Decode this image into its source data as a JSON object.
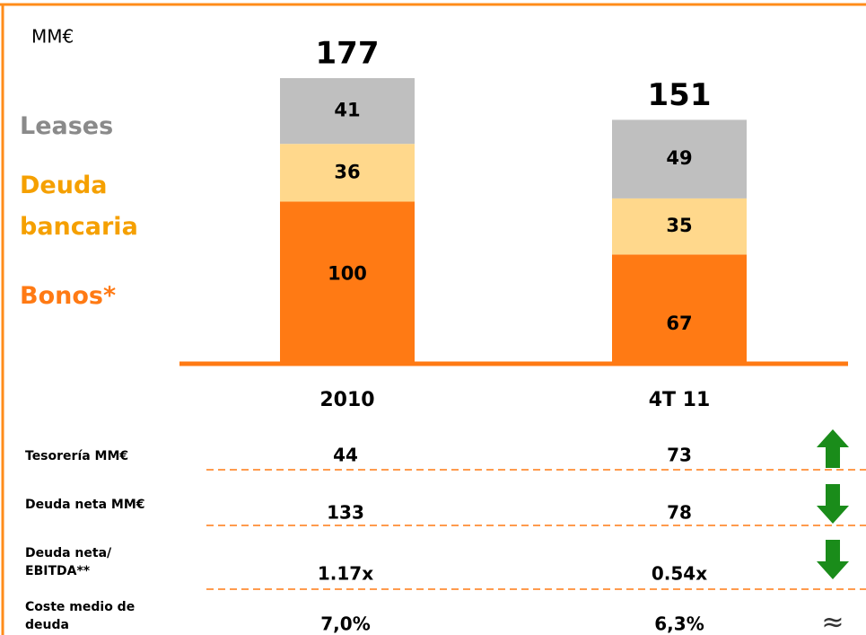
{
  "chart_data": {
    "type": "stacked_bar",
    "unit": "MM€",
    "categories": [
      "2010",
      "4T 11"
    ],
    "series": [
      {
        "name": "Bonos*",
        "color": "#ff7a14",
        "legend_color": "#ff7a14",
        "values": [
          100,
          67
        ]
      },
      {
        "name": "Deuda bancaria",
        "color": "#ffd88c",
        "legend_color": "#f5a000",
        "values": [
          36,
          35
        ]
      },
      {
        "name": "Leases",
        "color": "#bfbfbf",
        "legend_color": "#8a8a8a",
        "values": [
          41,
          49
        ]
      }
    ],
    "totals": [
      177,
      151
    ]
  },
  "table": {
    "rows": [
      {
        "label": "Tesorería  MM€",
        "values": [
          "44",
          "73"
        ]
      },
      {
        "label": "Deuda neta MM€",
        "values": [
          "133",
          "78"
        ]
      },
      {
        "label": "Deuda neta/ EBITDA**",
        "values": [
          "1.17x",
          "0.54x"
        ]
      },
      {
        "label": "Coste medio de deuda",
        "values": [
          "7,0%",
          "6,3%"
        ],
        "trend": "≈"
      }
    ]
  }
}
